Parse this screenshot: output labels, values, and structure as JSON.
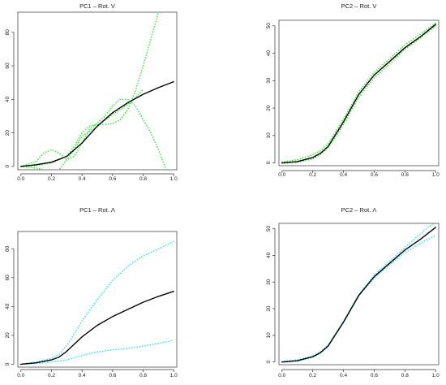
{
  "chart_data": [
    {
      "type": "line",
      "title": "PC1 – Rot. V",
      "xlim": [
        -0.02,
        1.02
      ],
      "ylim": [
        -2,
        92
      ],
      "xticks": [
        0.0,
        0.2,
        0.4,
        0.6,
        0.8,
        1.0
      ],
      "xtick_labels": [
        "0.0",
        "0.2",
        "0.4",
        "0.6",
        "0.8",
        "1.0"
      ],
      "yticks": [
        0,
        20,
        40,
        60,
        80
      ],
      "ytick_labels": [
        "0",
        "20",
        "40",
        "60",
        "80"
      ],
      "series": [
        {
          "color": "#000000",
          "style": "solid",
          "x": [
            0.0,
            0.1,
            0.2,
            0.3,
            0.4,
            0.5,
            0.6,
            0.7,
            0.8,
            0.9,
            1.0
          ],
          "y": [
            0,
            1,
            2.5,
            6,
            14,
            24,
            32,
            38,
            43,
            47,
            50.5
          ]
        },
        {
          "color": "#33ee33",
          "style": "dotted",
          "x": [
            0.0,
            0.1,
            0.2,
            0.3,
            0.35,
            0.4,
            0.45,
            0.5,
            0.55,
            0.6,
            0.65,
            0.7,
            0.75,
            0.8,
            0.85,
            0.9
          ],
          "y": [
            0,
            0.5,
            2,
            6,
            12,
            20,
            24,
            25,
            25,
            25.5,
            28,
            34,
            45,
            60,
            76,
            92
          ]
        },
        {
          "color": "#33ee33",
          "style": "dotted",
          "x": [
            0.0,
            0.1,
            0.15,
            0.2,
            0.25,
            0.3,
            0.35,
            0.4,
            0.45,
            0.5,
            0.55,
            0.6,
            0.65,
            0.7,
            0.75,
            0.8,
            0.85,
            0.9,
            0.95
          ],
          "y": [
            0,
            3,
            8,
            10,
            8,
            4,
            6,
            14,
            22,
            26,
            30,
            36,
            40,
            40,
            36,
            28,
            20,
            10,
            -2
          ]
        },
        {
          "color": "#33ee33",
          "style": "dotted",
          "x": [
            0.0,
            0.1,
            0.2,
            0.25,
            0.3,
            0.35,
            0.4,
            0.5,
            0.6,
            0.7,
            0.75,
            0.8
          ],
          "y": [
            0,
            -1,
            -3,
            -2,
            4,
            10,
            18,
            24,
            31,
            37,
            41,
            46
          ]
        }
      ]
    },
    {
      "type": "line",
      "title": "PC2 – Rot. V",
      "xlim": [
        -0.02,
        1.02
      ],
      "ylim": [
        -1,
        52
      ],
      "xticks": [
        0.0,
        0.2,
        0.4,
        0.6,
        0.8,
        1.0
      ],
      "xtick_labels": [
        "0.0",
        "0.2",
        "0.4",
        "0.6",
        "0.8",
        "1.0"
      ],
      "yticks": [
        0,
        10,
        20,
        30,
        40,
        50
      ],
      "ytick_labels": [
        "0",
        "10",
        "20",
        "30",
        "40",
        "50"
      ],
      "series": [
        {
          "color": "#000000",
          "style": "solid",
          "x": [
            0.0,
            0.1,
            0.2,
            0.25,
            0.3,
            0.4,
            0.5,
            0.6,
            0.7,
            0.8,
            0.9,
            1.0
          ],
          "y": [
            0,
            0.5,
            2,
            3.5,
            6,
            15,
            25,
            32,
            37,
            42,
            46,
            50.5
          ]
        },
        {
          "color": "#33ee33",
          "style": "dotted",
          "x": [
            0.0,
            0.1,
            0.2,
            0.25,
            0.3,
            0.4,
            0.5,
            0.6,
            0.7,
            0.8,
            0.9,
            1.0
          ],
          "y": [
            0.3,
            1.2,
            3,
            4.5,
            7,
            16,
            26,
            33,
            38,
            43,
            47,
            51
          ]
        },
        {
          "color": "#33ee33",
          "style": "dotted",
          "x": [
            0.0,
            0.1,
            0.2,
            0.25,
            0.3,
            0.4,
            0.5,
            0.6,
            0.7,
            0.8,
            0.9,
            1.0
          ],
          "y": [
            -0.2,
            0.2,
            1.5,
            3,
            5.5,
            14,
            24,
            31,
            36,
            41.5,
            45.5,
            50
          ]
        }
      ]
    },
    {
      "type": "line",
      "title": "PC1 – Rot. Λ",
      "xlim": [
        -0.02,
        1.02
      ],
      "ylim": [
        -2,
        92
      ],
      "xticks": [
        0.0,
        0.2,
        0.4,
        0.6,
        0.8,
        1.0
      ],
      "xtick_labels": [
        "0.0",
        "0.2",
        "0.4",
        "0.6",
        "0.8",
        "1.0"
      ],
      "yticks": [
        0,
        20,
        40,
        60,
        80
      ],
      "ytick_labels": [
        "0",
        "20",
        "40",
        "60",
        "80"
      ],
      "series": [
        {
          "color": "#000000",
          "style": "solid",
          "x": [
            0.0,
            0.1,
            0.2,
            0.25,
            0.3,
            0.35,
            0.4,
            0.5,
            0.6,
            0.7,
            0.8,
            0.9,
            1.0
          ],
          "y": [
            0,
            1,
            3,
            5,
            9,
            14,
            19,
            27,
            33,
            38,
            43,
            47,
            50.5
          ]
        },
        {
          "color": "#33e6e6",
          "style": "dotted",
          "x": [
            0.0,
            0.1,
            0.2,
            0.25,
            0.3,
            0.35,
            0.4,
            0.5,
            0.6,
            0.7,
            0.8,
            0.9,
            1.0
          ],
          "y": [
            0,
            1.5,
            4,
            7,
            13,
            21,
            30,
            45,
            58,
            68,
            75,
            80,
            85
          ]
        },
        {
          "color": "#33e6e6",
          "style": "dotted",
          "x": [
            0.0,
            0.1,
            0.2,
            0.3,
            0.4,
            0.5,
            0.6,
            0.7,
            0.8,
            0.9,
            1.0
          ],
          "y": [
            0,
            0.5,
            1.5,
            3,
            6,
            8.5,
            10,
            11,
            12.5,
            14.5,
            16.5
          ]
        }
      ]
    },
    {
      "type": "line",
      "title": "PC2 – Rot. Λ",
      "xlim": [
        -0.02,
        1.02
      ],
      "ylim": [
        -1,
        52
      ],
      "xticks": [
        0.0,
        0.2,
        0.4,
        0.6,
        0.8,
        1.0
      ],
      "xtick_labels": [
        "0.0",
        "0.2",
        "0.4",
        "0.6",
        "0.8",
        "1.0"
      ],
      "yticks": [
        0,
        10,
        20,
        30,
        40,
        50
      ],
      "ytick_labels": [
        "0",
        "10",
        "20",
        "30",
        "40",
        "50"
      ],
      "series": [
        {
          "color": "#000000",
          "style": "solid",
          "x": [
            0.0,
            0.1,
            0.2,
            0.25,
            0.3,
            0.4,
            0.5,
            0.6,
            0.7,
            0.8,
            0.9,
            1.0
          ],
          "y": [
            0,
            0.5,
            2,
            3.5,
            6,
            15,
            25,
            32,
            37,
            42,
            46,
            50.5
          ]
        },
        {
          "color": "#33e6e6",
          "style": "dotted",
          "x": [
            0.0,
            0.1,
            0.2,
            0.25,
            0.3,
            0.4,
            0.5,
            0.6,
            0.7,
            0.8,
            0.9,
            0.95,
            1.0
          ],
          "y": [
            0.2,
            0.8,
            2.3,
            3.8,
            6.3,
            15.3,
            25.3,
            32.5,
            37.8,
            43,
            48,
            50.5,
            52.5
          ]
        },
        {
          "color": "#33e6e6",
          "style": "dotted",
          "x": [
            0.0,
            0.1,
            0.2,
            0.25,
            0.3,
            0.4,
            0.5,
            0.6,
            0.7,
            0.8,
            0.9,
            1.0
          ],
          "y": [
            -0.1,
            0.3,
            1.8,
            3.3,
            5.8,
            14.8,
            24.8,
            31.5,
            36.5,
            41,
            44.5,
            47.5
          ]
        }
      ]
    }
  ]
}
